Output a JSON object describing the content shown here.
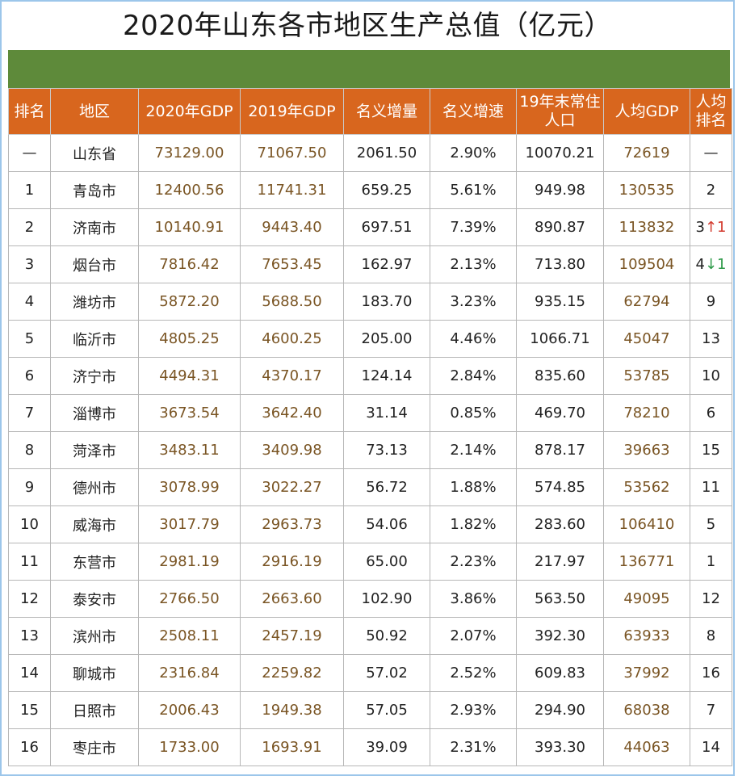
{
  "title": "2020年山东各市地区生产总值（亿元）",
  "headers": [
    "排名",
    "地区",
    "2020年GDP",
    "2019年GDP",
    "名义增量",
    "名义增速",
    "19年末常住人口",
    "人均GDP",
    "人均排名"
  ],
  "header_lines": {
    "pop": [
      "19年末常住",
      "人口"
    ],
    "pcrank": [
      "人均",
      "排名"
    ]
  },
  "rows": [
    {
      "rank": "—",
      "region": "山东省",
      "gdp2020": "73129.00",
      "gdp2019": "71067.50",
      "inc": "2061.50",
      "rate": "2.90%",
      "pop": "10070.21",
      "pc": "72619",
      "pcrank": "—",
      "arrow": ""
    },
    {
      "rank": "1",
      "region": "青岛市",
      "gdp2020": "12400.56",
      "gdp2019": "11741.31",
      "inc": "659.25",
      "rate": "5.61%",
      "pop": "949.98",
      "pc": "130535",
      "pcrank": "2",
      "arrow": ""
    },
    {
      "rank": "2",
      "region": "济南市",
      "gdp2020": "10140.91",
      "gdp2019": "9443.40",
      "inc": "697.51",
      "rate": "7.39%",
      "pop": "890.87",
      "pc": "113832",
      "pcrank": "3",
      "arrow": "↑1"
    },
    {
      "rank": "3",
      "region": "烟台市",
      "gdp2020": "7816.42",
      "gdp2019": "7653.45",
      "inc": "162.97",
      "rate": "2.13%",
      "pop": "713.80",
      "pc": "109504",
      "pcrank": "4",
      "arrow": "↓1"
    },
    {
      "rank": "4",
      "region": "潍坊市",
      "gdp2020": "5872.20",
      "gdp2019": "5688.50",
      "inc": "183.70",
      "rate": "3.23%",
      "pop": "935.15",
      "pc": "62794",
      "pcrank": "9",
      "arrow": ""
    },
    {
      "rank": "5",
      "region": "临沂市",
      "gdp2020": "4805.25",
      "gdp2019": "4600.25",
      "inc": "205.00",
      "rate": "4.46%",
      "pop": "1066.71",
      "pc": "45047",
      "pcrank": "13",
      "arrow": ""
    },
    {
      "rank": "6",
      "region": "济宁市",
      "gdp2020": "4494.31",
      "gdp2019": "4370.17",
      "inc": "124.14",
      "rate": "2.84%",
      "pop": "835.60",
      "pc": "53785",
      "pcrank": "10",
      "arrow": ""
    },
    {
      "rank": "7",
      "region": "淄博市",
      "gdp2020": "3673.54",
      "gdp2019": "3642.40",
      "inc": "31.14",
      "rate": "0.85%",
      "pop": "469.70",
      "pc": "78210",
      "pcrank": "6",
      "arrow": ""
    },
    {
      "rank": "8",
      "region": "菏泽市",
      "gdp2020": "3483.11",
      "gdp2019": "3409.98",
      "inc": "73.13",
      "rate": "2.14%",
      "pop": "878.17",
      "pc": "39663",
      "pcrank": "15",
      "arrow": ""
    },
    {
      "rank": "9",
      "region": "德州市",
      "gdp2020": "3078.99",
      "gdp2019": "3022.27",
      "inc": "56.72",
      "rate": "1.88%",
      "pop": "574.85",
      "pc": "53562",
      "pcrank": "11",
      "arrow": ""
    },
    {
      "rank": "10",
      "region": "威海市",
      "gdp2020": "3017.79",
      "gdp2019": "2963.73",
      "inc": "54.06",
      "rate": "1.82%",
      "pop": "283.60",
      "pc": "106410",
      "pcrank": "5",
      "arrow": ""
    },
    {
      "rank": "11",
      "region": "东营市",
      "gdp2020": "2981.19",
      "gdp2019": "2916.19",
      "inc": "65.00",
      "rate": "2.23%",
      "pop": "217.97",
      "pc": "136771",
      "pcrank": "1",
      "arrow": ""
    },
    {
      "rank": "12",
      "region": "泰安市",
      "gdp2020": "2766.50",
      "gdp2019": "2663.60",
      "inc": "102.90",
      "rate": "3.86%",
      "pop": "563.50",
      "pc": "49095",
      "pcrank": "12",
      "arrow": ""
    },
    {
      "rank": "13",
      "region": "滨州市",
      "gdp2020": "2508.11",
      "gdp2019": "2457.19",
      "inc": "50.92",
      "rate": "2.07%",
      "pop": "392.30",
      "pc": "63933",
      "pcrank": "8",
      "arrow": ""
    },
    {
      "rank": "14",
      "region": "聊城市",
      "gdp2020": "2316.84",
      "gdp2019": "2259.82",
      "inc": "57.02",
      "rate": "2.52%",
      "pop": "609.83",
      "pc": "37992",
      "pcrank": "16",
      "arrow": ""
    },
    {
      "rank": "15",
      "region": "日照市",
      "gdp2020": "2006.43",
      "gdp2019": "1949.38",
      "inc": "57.05",
      "rate": "2.93%",
      "pop": "294.90",
      "pc": "68038",
      "pcrank": "7",
      "arrow": ""
    },
    {
      "rank": "16",
      "region": "枣庄市",
      "gdp2020": "1733.00",
      "gdp2019": "1693.91",
      "inc": "39.09",
      "rate": "2.31%",
      "pop": "393.30",
      "pc": "44063",
      "pcrank": "14",
      "arrow": ""
    }
  ],
  "colors": {
    "header_bg": "#d8661e",
    "band": "#5e8a3a",
    "value_text": "#7a5524",
    "arrow_up": "#d33a2e",
    "arrow_down": "#2f9a4a",
    "frame": "#9cc6ea"
  }
}
